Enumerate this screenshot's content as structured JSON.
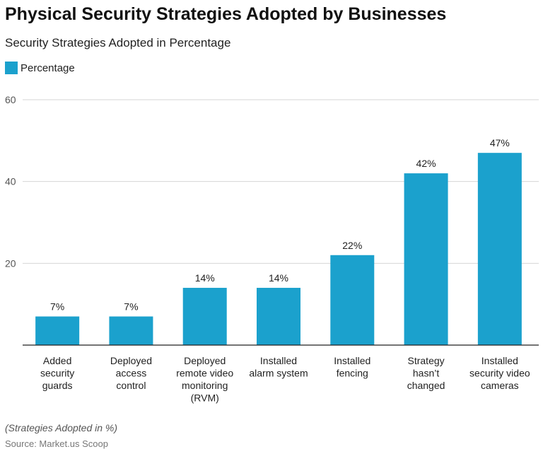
{
  "chart_data": {
    "type": "bar",
    "title": "Physical Security Strategies Adopted by Businesses",
    "subtitle": "Security Strategies Adopted in Percentage",
    "categories": [
      "Added security guards",
      "Deployed access control",
      "Deployed remote video monitoring (RVM)",
      "Installed alarm system",
      "Installed fencing",
      "Strategy hasn't changed",
      "Installed security video cameras"
    ],
    "category_lines": [
      [
        "Added",
        "security",
        "guards"
      ],
      [
        "Deployed",
        "access",
        "control"
      ],
      [
        "Deployed",
        "remote video",
        "monitoring",
        "(RVM)"
      ],
      [
        "Installed",
        "alarm system"
      ],
      [
        "Installed",
        "fencing"
      ],
      [
        "Strategy",
        "hasn’t",
        "changed"
      ],
      [
        "Installed",
        "security video",
        "cameras"
      ]
    ],
    "series": [
      {
        "name": "Percentage",
        "values": [
          7,
          7,
          14,
          14,
          22,
          42,
          47
        ],
        "color": "#1ba1cd"
      }
    ],
    "data_labels": [
      "7%",
      "7%",
      "14%",
      "14%",
      "22%",
      "42%",
      "47%"
    ],
    "ylim": [
      0,
      60
    ],
    "yticks": [
      20,
      40,
      60
    ],
    "grid": true,
    "legend": "top-left",
    "xlabel": "",
    "ylabel": ""
  },
  "note": "(Strategies Adopted in %)",
  "source": "Source: Market.us Scoop"
}
